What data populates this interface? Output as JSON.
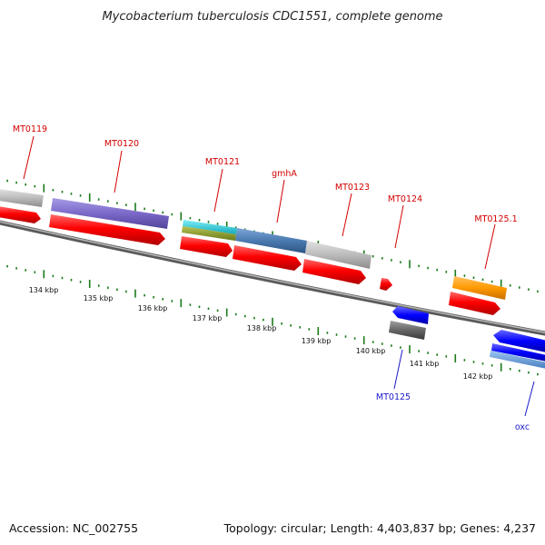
{
  "title": "Mycobacterium tuberculosis CDC1551, complete genome",
  "accession": "Accession: NC_002755",
  "topology": "Topology: circular; Length: 4,403,837 bp; Genes: 4,237",
  "scale_labels": [
    "134 kbp",
    "135 kbp",
    "136 kbp",
    "137 kbp",
    "138 kbp",
    "139 kbp",
    "140 kbp",
    "141 kbp",
    "142 kbp"
  ],
  "gene_labels": {
    "forward": [
      "MT0119",
      "MT0120",
      "MT0121",
      "gmhA",
      "MT0123",
      "MT0124",
      "MT0125.1"
    ],
    "reverse": [
      "MT0125",
      "oxc"
    ]
  },
  "colors": {
    "cds": "#ff0000",
    "blast_purple": "#7b68c8",
    "blast_cyan": "#20c8d8",
    "blast_olive": "#8a9a2a",
    "blast_steel": "#4a7ab0",
    "blast_grey": "#bbbbbb",
    "blast_orange": "#ff9900",
    "reverse_blue": "#0000ff",
    "reverse_grey": "#666666",
    "tick_green": "#1a7a1a",
    "backbone": "#888888"
  }
}
